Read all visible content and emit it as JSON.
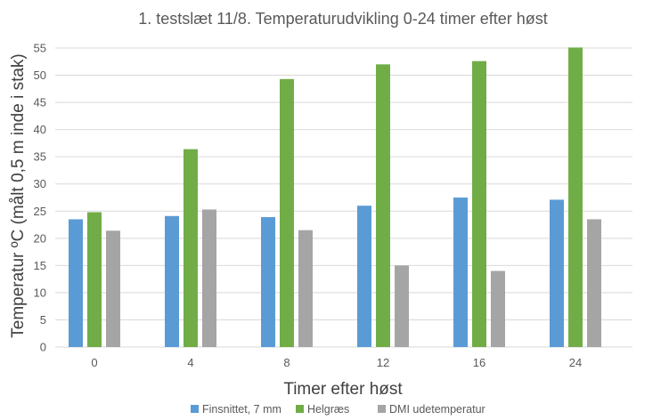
{
  "chart_data": {
    "type": "bar",
    "title": "1. testslæt 11/8. Temperaturudvikling 0-24 timer efter høst",
    "xlabel": "Timer efter høst",
    "ylabel": "Temperatur ºC (målt 0,5 m inde i stak)",
    "categories": [
      "0",
      "4",
      "8",
      "12",
      "16",
      "24"
    ],
    "ylim": [
      0,
      55
    ],
    "yticks": [
      0,
      5,
      10,
      15,
      20,
      25,
      30,
      35,
      40,
      45,
      50,
      55
    ],
    "grid": true,
    "legend_position": "bottom",
    "series": [
      {
        "name": "Finsnittet, 7 mm",
        "color": "#5b9bd5",
        "values": [
          23.5,
          24.1,
          23.9,
          26.0,
          27.5,
          27.1
        ]
      },
      {
        "name": "Helgræs",
        "color": "#70ad47",
        "values": [
          24.8,
          36.4,
          49.3,
          52.0,
          52.6,
          55.1
        ]
      },
      {
        "name": "DMI udetemperatur",
        "color": "#a5a5a5",
        "values": [
          21.4,
          25.3,
          21.5,
          15.0,
          14.0,
          23.5
        ]
      }
    ]
  }
}
